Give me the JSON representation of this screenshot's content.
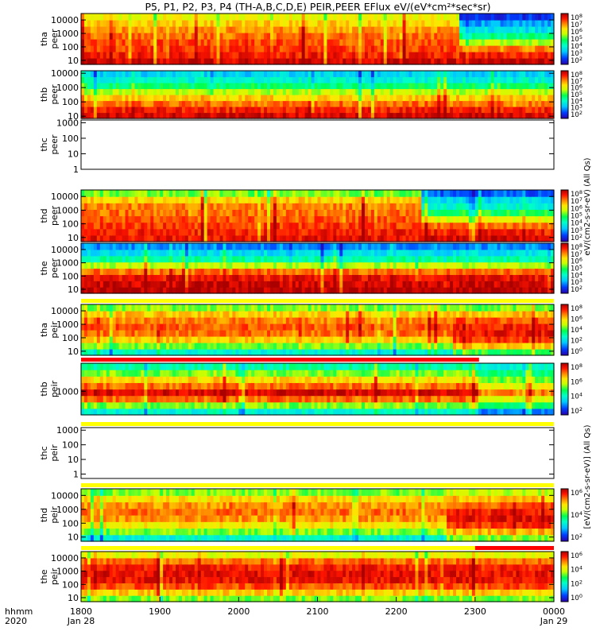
{
  "chart_data": {
    "type": "heatmap",
    "title": "P5, P1, P2, P3, P4 (TH-A,B,C,D,E) PEIR,PEER EFlux eV/(eV*cm²*sec*sr)",
    "x_axis": {
      "label_left": "hhmm",
      "year": "2020",
      "ticks": [
        "1800",
        "1900",
        "2000",
        "2100",
        "2200",
        "2300",
        "0000"
      ],
      "tick_dates": [
        "Jan 28",
        "",
        "",
        "",
        "",
        "",
        "Jan 29"
      ],
      "range_hours": [
        18,
        24
      ]
    },
    "colorbar_label_upper": "eV/(cm2-s-sr-eV) (All Qs)",
    "colorbar_label_lower": "[eV/(cm2-s-sr-eV)] (All Qs)",
    "colors": {
      "dark_red": "#b40000",
      "red": "#ff0000",
      "orange": "#ff8c00",
      "yellow": "#ffff00",
      "green": "#00ff64",
      "cyan": "#00ffff",
      "blue": "#0000ff",
      "black": "#000000"
    },
    "panels": [
      {
        "id": "tha-peer",
        "label_top": "tha",
        "label_bottom": "peer",
        "y_ticks": [
          "10",
          "100",
          "1000",
          "10000"
        ],
        "y_range": [
          5,
          30000
        ],
        "has_data": true,
        "strip": false,
        "cb_ticks": [
          "10^8",
          "10^7",
          "10^6",
          "10^5",
          "10^4",
          "10^3",
          "10^2"
        ],
        "energy_profile": [
          0.95,
          0.92,
          0.88,
          0.8,
          0.7,
          0.6,
          0.5,
          0.4
        ],
        "segments": [
          {
            "end": 22.8,
            "levels": [
              0.95,
              0.9,
              0.87,
              0.85,
              0.82,
              0.78,
              0.72,
              0.66
            ]
          },
          {
            "end": 24.0,
            "levels": [
              0.97,
              0.9,
              0.8,
              0.6,
              0.42,
              0.3,
              0.22,
              0.1
            ]
          }
        ]
      },
      {
        "id": "thb-peer",
        "label_top": "thb",
        "label_bottom": "peer",
        "y_ticks": [
          "10",
          "100",
          "1000",
          "10000"
        ],
        "y_range": [
          7,
          15000
        ],
        "has_data": true,
        "strip": false,
        "cb_ticks": [
          "10^8",
          "10^7",
          "10^6",
          "10^5",
          "10^4",
          "10^3",
          "10^2"
        ],
        "segments": [
          {
            "end": 24.0,
            "levels": [
              0.95,
              0.9,
              0.82,
              0.72,
              0.6,
              0.45,
              0.35,
              0.28
            ]
          }
        ]
      },
      {
        "id": "thc-peer",
        "label_top": "thc",
        "label_bottom": "peer",
        "y_ticks": [
          "1",
          "10",
          "100",
          "1000"
        ],
        "y_range": [
          1,
          1500
        ],
        "has_data": false,
        "strip": false,
        "cb_ticks": []
      },
      {
        "id": "thd-peer",
        "label_top": "thd",
        "label_bottom": "peer",
        "y_ticks": [
          "10",
          "100",
          "1000",
          "10000"
        ],
        "y_range": [
          5,
          30000
        ],
        "has_data": true,
        "strip": false,
        "cb_ticks": [
          "10^8",
          "10^7",
          "10^6",
          "10^5",
          "10^4",
          "10^3",
          "10^2"
        ],
        "segments": [
          {
            "end": 22.3,
            "levels": [
              0.92,
              0.9,
              0.87,
              0.84,
              0.82,
              0.8,
              0.72,
              0.55
            ]
          },
          {
            "end": 24.0,
            "levels": [
              0.96,
              0.9,
              0.82,
              0.65,
              0.48,
              0.36,
              0.28,
              0.15
            ]
          }
        ]
      },
      {
        "id": "the-peer",
        "label_top": "the",
        "label_bottom": "peer",
        "y_ticks": [
          "10",
          "100",
          "1000",
          "10000"
        ],
        "y_range": [
          5,
          30000
        ],
        "has_data": true,
        "strip": false,
        "cb_ticks": [
          "10^8",
          "10^7",
          "10^6",
          "10^5",
          "10^4",
          "10^3",
          "10^2"
        ],
        "segments": [
          {
            "end": 24.0,
            "levels": [
              0.98,
              0.96,
              0.92,
              0.82,
              0.6,
              0.4,
              0.3,
              0.2
            ]
          }
        ]
      },
      {
        "id": "tha-peir",
        "label_top": "tha",
        "label_bottom": "peir",
        "y_ticks": [
          "10",
          "100",
          "1000",
          "10000"
        ],
        "y_range": [
          5,
          30000
        ],
        "has_data": true,
        "strip": true,
        "strip_color": "yellow",
        "cb_ticks": [
          "10^8",
          "10^6",
          "10^4",
          "10^2",
          "10^0"
        ],
        "segments": [
          {
            "end": 22.7,
            "levels": [
              0.35,
              0.55,
              0.72,
              0.82,
              0.84,
              0.8,
              0.72,
              0.55
            ]
          },
          {
            "end": 24.0,
            "levels": [
              0.5,
              0.72,
              0.88,
              0.92,
              0.9,
              0.85,
              0.75,
              0.55
            ]
          }
        ]
      },
      {
        "id": "thb-peir",
        "label_top": "thb",
        "label_bottom": "peir",
        "y_ticks": [
          "1000"
        ],
        "y_range": [
          80,
          20000
        ],
        "has_data": true,
        "strip": true,
        "strip_color": "red_white",
        "cb_ticks": [
          "10^8",
          "10^6",
          "10^4",
          "10^2"
        ],
        "segments": [
          {
            "end": 23.05,
            "levels": [
              0.35,
              0.55,
              0.82,
              0.95,
              0.82,
              0.7,
              0.55,
              0.4
            ]
          },
          {
            "end": 24.0,
            "levels": [
              0.2,
              0.45,
              0.65,
              0.8,
              0.65,
              0.55,
              0.45,
              0.35
            ]
          }
        ]
      },
      {
        "id": "thc-peir",
        "label_top": "thc",
        "label_bottom": "peir",
        "y_ticks": [
          "1",
          "10",
          "100",
          "1000"
        ],
        "y_range": [
          0.5,
          1500
        ],
        "has_data": false,
        "strip": true,
        "strip_color": "yellow",
        "cb_ticks": []
      },
      {
        "id": "thd-peir",
        "label_top": "thd",
        "label_bottom": "peir",
        "y_ticks": [
          "10",
          "100",
          "1000",
          "10000"
        ],
        "y_range": [
          5,
          30000
        ],
        "has_data": true,
        "strip": true,
        "strip_color": "yellow",
        "cb_ticks": [
          "10^6",
          "10^4",
          "10^2"
        ],
        "segments": [
          {
            "end": 22.65,
            "levels": [
              0.35,
              0.55,
              0.68,
              0.78,
              0.82,
              0.78,
              0.7,
              0.55
            ]
          },
          {
            "end": 24.0,
            "levels": [
              0.55,
              0.75,
              0.88,
              0.93,
              0.9,
              0.84,
              0.74,
              0.6
            ]
          }
        ]
      },
      {
        "id": "the-peir",
        "label_top": "the",
        "label_bottom": "peir",
        "y_ticks": [
          "10",
          "100",
          "1000",
          "10000"
        ],
        "y_range": [
          5,
          30000
        ],
        "has_data": true,
        "strip": true,
        "strip_color": "yellow_red",
        "cb_ticks": [
          "10^6",
          "10^4",
          "10^2",
          "10^0"
        ],
        "segments": [
          {
            "end": 24.0,
            "levels": [
              0.55,
              0.72,
              0.85,
              0.92,
              0.93,
              0.9,
              0.82,
              0.65
            ]
          }
        ]
      }
    ]
  }
}
